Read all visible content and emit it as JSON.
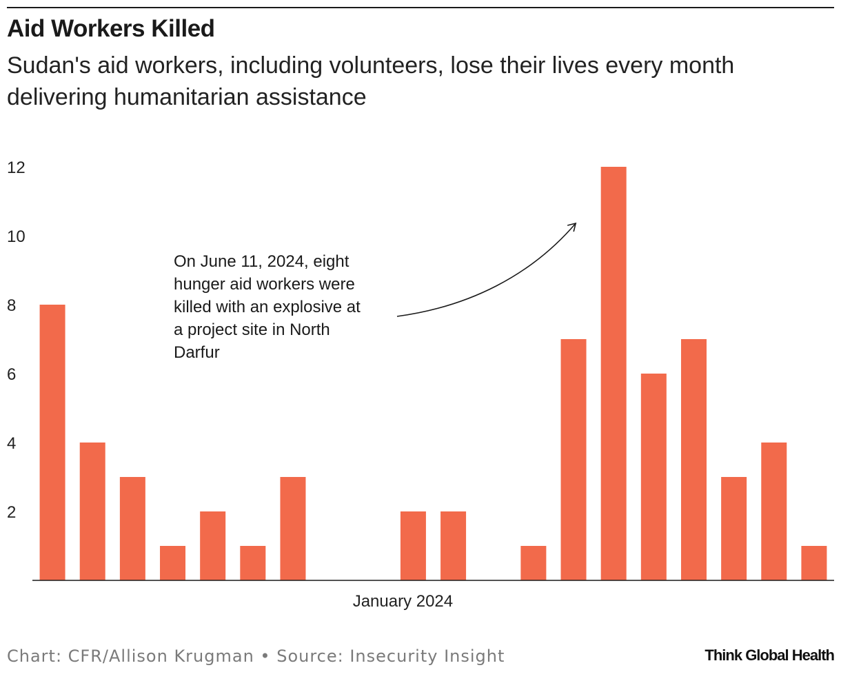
{
  "header": {
    "title": "Aid Workers Killed",
    "subtitle": "Sudan's aid workers, including volunteers, lose their lives every month delivering humanitarian assistance"
  },
  "chart_data": {
    "type": "bar",
    "title": "Aid Workers Killed",
    "subtitle": "Sudan's aid workers, including volunteers, lose their lives every month delivering humanitarian assistance",
    "x_tick_label": "January 2024",
    "x_tick_index": 9,
    "values": [
      8,
      4,
      3,
      1,
      2,
      1,
      3,
      0,
      0,
      2,
      2,
      0,
      1,
      7,
      12,
      6,
      7,
      3,
      4,
      1
    ],
    "y_ticks": [
      2,
      4,
      6,
      8,
      10,
      12
    ],
    "ylim": [
      0,
      12
    ],
    "bar_color": "#f26a4b",
    "grid": false,
    "annotation": {
      "lines": [
        "On June 11, 2024, eight",
        "hunger aid workers were",
        "killed with an explosive at",
        "a project site in North",
        "Darfur"
      ],
      "points_to_index": 14
    }
  },
  "footer": {
    "credit": "Chart: CFR/Allison Krugman • Source: Insecurity Insight",
    "brand": "Think Global Health"
  }
}
